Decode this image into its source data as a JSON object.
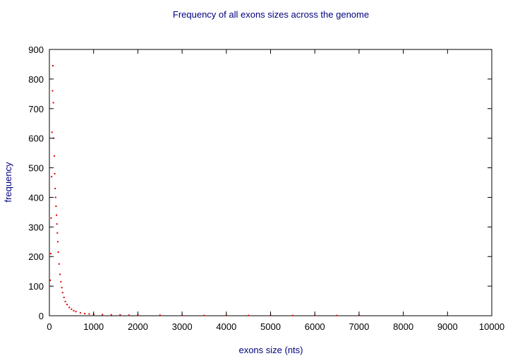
{
  "chart_data": {
    "type": "scatter",
    "title": "Frequency of all exons sizes across the genome",
    "xlabel": "exons size (nts)",
    "ylabel": "frequency",
    "xlim": [
      0,
      10000
    ],
    "ylim": [
      0,
      900
    ],
    "xticks": [
      0,
      1000,
      2000,
      3000,
      4000,
      5000,
      6000,
      7000,
      8000,
      9000,
      10000
    ],
    "yticks": [
      0,
      100,
      200,
      300,
      400,
      500,
      600,
      700,
      800,
      900
    ],
    "grid": false,
    "legend": "none",
    "colors": {
      "points": "#e00000",
      "text": "#000080",
      "axis": "#000000"
    },
    "series": [
      {
        "x": [
          20,
          30,
          40,
          50,
          60,
          70,
          80,
          90,
          100,
          110,
          120,
          130,
          140,
          150,
          160,
          170,
          180,
          190,
          200,
          220,
          240,
          260,
          280,
          300,
          330,
          360,
          400,
          450,
          500,
          550,
          600,
          700,
          800,
          900,
          1000,
          1200,
          1400,
          1600,
          1800,
          2000,
          2500,
          3000,
          3500,
          4000,
          4500,
          5000,
          5500,
          6000,
          6500,
          7000
        ],
        "y": [
          120,
          210,
          330,
          470,
          620,
          760,
          845,
          720,
          600,
          540,
          480,
          430,
          400,
          370,
          340,
          310,
          280,
          250,
          215,
          175,
          140,
          115,
          95,
          78,
          62,
          48,
          38,
          28,
          22,
          17,
          14,
          10,
          7,
          6,
          5,
          4,
          3,
          3,
          2,
          2,
          2,
          1,
          1,
          1,
          1,
          1,
          1,
          1,
          1,
          1
        ]
      }
    ]
  }
}
